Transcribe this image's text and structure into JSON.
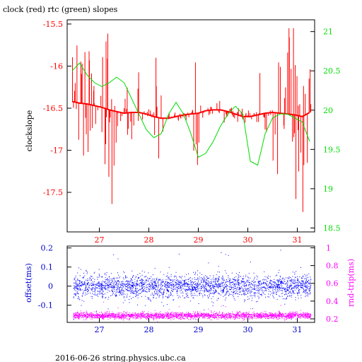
{
  "header": {
    "title": "clock (red) rtc (green) slopes"
  },
  "footer": {
    "text": "2016-06-26 string.physics.ubc.ca"
  },
  "colors": {
    "clock": "#ff0000",
    "rtc": "#00dd00",
    "offset": "#0000ff",
    "rndtrip": "#ff00ff",
    "axis": "#000000"
  },
  "chart_data": [
    {
      "type": "line",
      "title": "clock (red) rtc (green) slopes",
      "ylabel": "clockslope",
      "ylabel_right": "",
      "x_ticks": [
        "27",
        "28",
        "29",
        "30",
        "31"
      ],
      "xlim": [
        26.35,
        31.35
      ],
      "ylim": [
        -17.97,
        -15.45
      ],
      "ylim_right": [
        18.45,
        21.15
      ],
      "y_ticks": [
        "-15.5",
        "-16",
        "-16.5",
        "-17",
        "-17.5"
      ],
      "y_ticks_right": [
        "21",
        "20.5",
        "20",
        "19.5",
        "19",
        "18.5"
      ],
      "series": [
        {
          "name": "clock",
          "axis": "left",
          "x": [
            26.45,
            26.6,
            26.75,
            26.9,
            27.05,
            27.2,
            27.35,
            27.5,
            27.65,
            27.8,
            27.95,
            28.1,
            28.25,
            28.4,
            28.55,
            28.7,
            28.85,
            29.0,
            29.15,
            29.3,
            29.45,
            29.6,
            29.75,
            29.9,
            30.05,
            30.2,
            30.35,
            30.5,
            30.65,
            30.8,
            30.95,
            31.1,
            31.25
          ],
          "y": [
            -16.42,
            -16.44,
            -16.45,
            -16.47,
            -16.49,
            -16.52,
            -16.54,
            -16.56,
            -16.55,
            -16.55,
            -16.57,
            -16.6,
            -16.62,
            -16.62,
            -16.6,
            -16.58,
            -16.57,
            -16.56,
            -16.53,
            -16.52,
            -16.52,
            -16.54,
            -16.57,
            -16.6,
            -16.6,
            -16.58,
            -16.56,
            -16.55,
            -16.56,
            -16.57,
            -16.58,
            -16.6,
            -16.55
          ]
        },
        {
          "name": "rtc",
          "axis": "right",
          "x": [
            26.45,
            26.6,
            26.75,
            26.9,
            27.05,
            27.2,
            27.35,
            27.5,
            27.65,
            27.8,
            27.95,
            28.1,
            28.25,
            28.4,
            28.55,
            28.7,
            28.85,
            29.0,
            29.15,
            29.3,
            29.45,
            29.6,
            29.75,
            29.9,
            30.05,
            30.2,
            30.35,
            30.5,
            30.65,
            30.8,
            30.95,
            31.1,
            31.25
          ],
          "y": [
            20.5,
            20.6,
            20.45,
            20.35,
            20.3,
            20.35,
            20.42,
            20.35,
            20.15,
            19.95,
            19.75,
            19.65,
            19.7,
            19.95,
            20.1,
            19.95,
            19.7,
            19.4,
            19.45,
            19.6,
            19.8,
            19.95,
            20.05,
            19.95,
            19.35,
            19.3,
            19.7,
            19.9,
            19.95,
            19.95,
            19.9,
            19.85,
            19.6
          ]
        }
      ]
    },
    {
      "type": "scatter",
      "ylabel": "offset(ms)",
      "ylabel_right": "rnd-trip(ms)",
      "x_ticks": [
        "27",
        "28",
        "29",
        "30",
        "31"
      ],
      "xlim": [
        26.35,
        31.35
      ],
      "ylim": [
        -0.19,
        0.21
      ],
      "ylim_right": [
        0.16,
        1.02
      ],
      "y_ticks": [
        "0.2",
        "0.1",
        "0",
        "-0.1"
      ],
      "y_ticks_right": [
        "1",
        "0.8",
        "0.6",
        "0.4",
        "0.2"
      ],
      "series": [
        {
          "name": "offset",
          "axis": "left",
          "center": 0.0,
          "spread": 0.05
        },
        {
          "name": "rnd-trip",
          "axis": "right",
          "center": 0.24,
          "spread": 0.03
        }
      ]
    }
  ]
}
